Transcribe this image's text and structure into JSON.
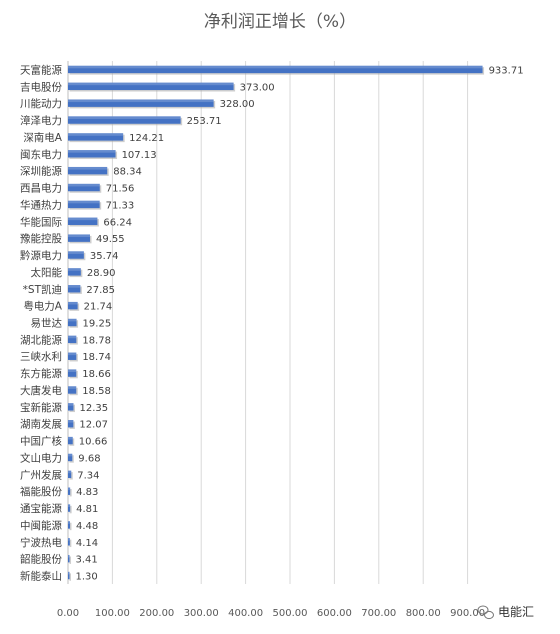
{
  "chart_data": {
    "type": "bar",
    "orientation": "horizontal",
    "title": "净利润正增长（%）",
    "xlim": [
      0,
      1000
    ],
    "xticks": [
      "0.00",
      "100.00",
      "200.00",
      "300.00",
      "400.00",
      "500.00",
      "600.00",
      "700.00",
      "800.00",
      "900.00"
    ],
    "grid": true,
    "bar_color": "#4472c4",
    "categories": [
      "天富能源",
      "吉电股份",
      "川能动力",
      "漳泽电力",
      "深南电A",
      "闽东电力",
      "深圳能源",
      "西昌电力",
      "华通热力",
      "华能国际",
      "豫能控股",
      "黔源电力",
      "太阳能",
      "*ST凯迪",
      "粤电力A",
      "易世达",
      "湖北能源",
      "三峡水利",
      "东方能源",
      "大唐发电",
      "宝新能源",
      "湖南发展",
      "中国广核",
      "文山电力",
      "广州发展",
      "福能股份",
      "通宝能源",
      "中闽能源",
      "宁波热电",
      "韶能股份",
      "新能泰山"
    ],
    "values": [
      933.71,
      373.0,
      328.0,
      253.71,
      124.21,
      107.13,
      88.34,
      71.56,
      71.33,
      66.24,
      49.55,
      35.74,
      28.9,
      27.85,
      21.74,
      19.25,
      18.78,
      18.74,
      18.66,
      18.58,
      12.35,
      12.07,
      10.66,
      9.68,
      7.34,
      4.83,
      4.81,
      4.48,
      4.14,
      3.41,
      1.3
    ],
    "value_labels": [
      "933.71",
      "373.00",
      "328.00",
      "253.71",
      "124.21",
      "107.13",
      "88.34",
      "71.56",
      "71.33",
      "66.24",
      "49.55",
      "35.74",
      "28.90",
      "27.85",
      "21.74",
      "19.25",
      "18.78",
      "18.74",
      "18.66",
      "18.58",
      "12.35",
      "12.07",
      "10.66",
      "9.68",
      "7.34",
      "4.83",
      "4.81",
      "4.48",
      "4.14",
      "3.41",
      "1.30"
    ]
  },
  "watermark": {
    "icon": "wechat-icon",
    "text": "电能汇"
  }
}
